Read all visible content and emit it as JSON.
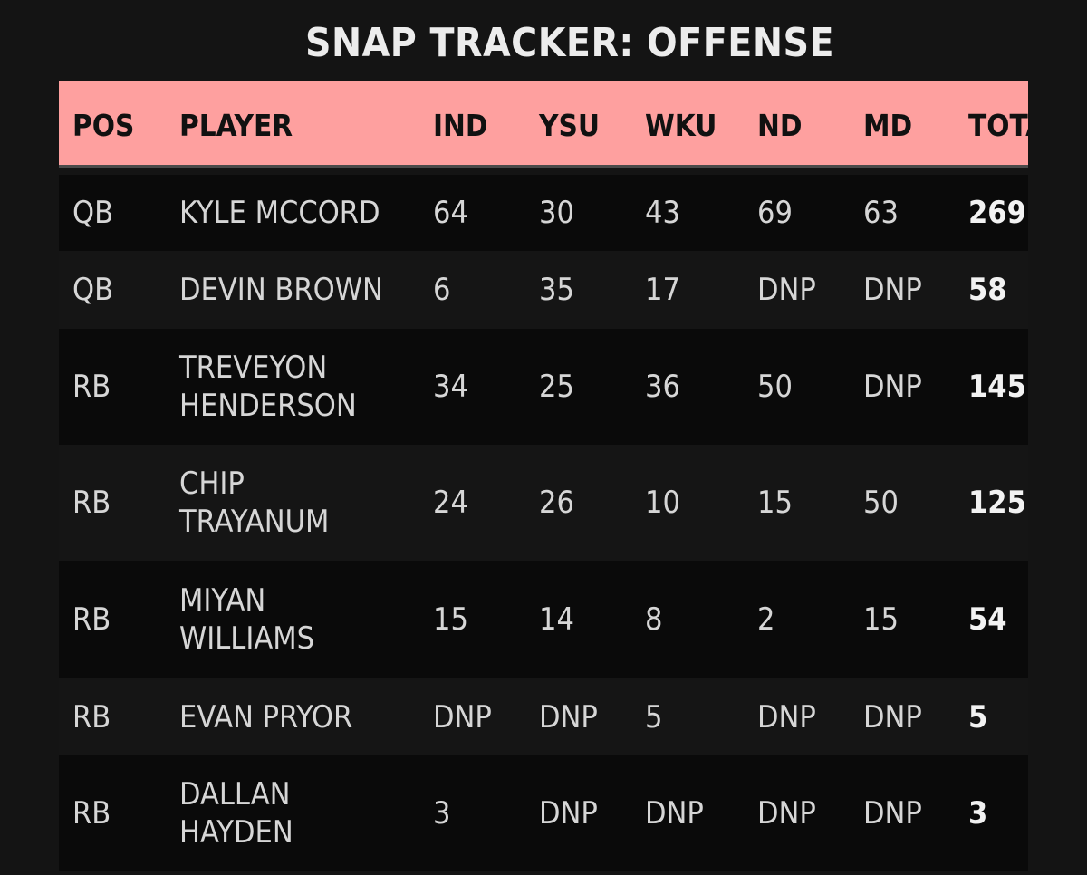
{
  "title": "SNAP TRACKER: OFFENSE",
  "columns": [
    "POS",
    "PLAYER",
    "IND",
    "YSU",
    "WKU",
    "ND",
    "MD",
    "TOTAL"
  ],
  "rows": [
    {
      "pos": "QB",
      "player": "KYLE MCCORD",
      "ind": "64",
      "ysu": "30",
      "wku": "43",
      "nd": "69",
      "md": "63",
      "total": "269"
    },
    {
      "pos": "QB",
      "player": "DEVIN BROWN",
      "ind": "6",
      "ysu": "35",
      "wku": "17",
      "nd": "DNP",
      "md": "DNP",
      "total": "58"
    },
    {
      "pos": "RB",
      "player": "TREVEYON\nHENDERSON",
      "ind": "34",
      "ysu": "25",
      "wku": "36",
      "nd": "50",
      "md": "DNP",
      "total": "145"
    },
    {
      "pos": "RB",
      "player": "CHIP\nTRAYANUM",
      "ind": "24",
      "ysu": "26",
      "wku": "10",
      "nd": "15",
      "md": "50",
      "total": "125"
    },
    {
      "pos": "RB",
      "player": "MIYAN\nWILLIAMS",
      "ind": "15",
      "ysu": "14",
      "wku": "8",
      "nd": "2",
      "md": "15",
      "total": "54"
    },
    {
      "pos": "RB",
      "player": "EVAN PRYOR",
      "ind": "DNP",
      "ysu": "DNP",
      "wku": "5",
      "nd": "DNP",
      "md": "DNP",
      "total": "5"
    },
    {
      "pos": "RB",
      "player": "DALLAN\nHAYDEN",
      "ind": "3",
      "ysu": "DNP",
      "wku": "DNP",
      "nd": "DNP",
      "md": "DNP",
      "total": "3"
    }
  ],
  "colors": {
    "header_bg": "#fea09f",
    "page_bg": "#141414",
    "row_dark": "#0a0a0a",
    "row_light": "#151515"
  }
}
